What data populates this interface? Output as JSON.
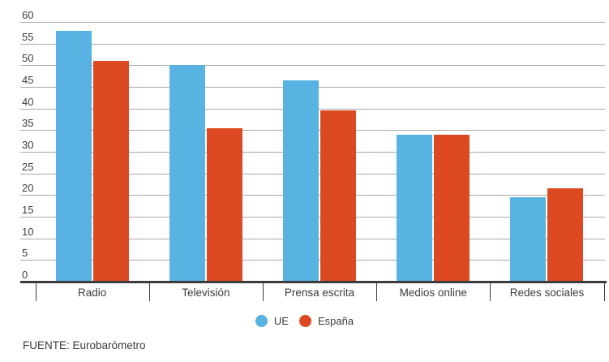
{
  "chart_data": {
    "type": "bar",
    "title": "",
    "xlabel": "",
    "ylabel": "",
    "categories": [
      "Radio",
      "Televisión",
      "Prensa escrita",
      "Medios online",
      "Redes sociales"
    ],
    "series": [
      {
        "name": "UE",
        "color": "#58b3e2",
        "values": [
          58,
          50,
          46.5,
          34,
          19.5
        ]
      },
      {
        "name": "España",
        "color": "#dd4a21",
        "values": [
          51,
          35.5,
          39.5,
          34,
          21.5
        ]
      }
    ],
    "ylim": [
      0,
      60
    ],
    "ytick_step": 5,
    "grid": "horizontal",
    "gridline_color": "#a9a9a9",
    "axis_color": "#3c3c3c",
    "legend_position": "bottom-center"
  },
  "source": "FUENTE: Eurobarómetro"
}
